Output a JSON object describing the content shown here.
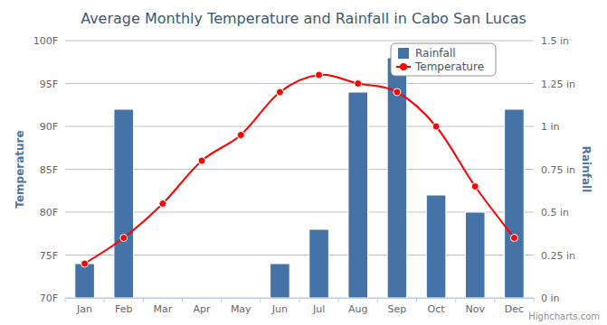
{
  "chart_data": {
    "type": "bar",
    "title": "Average Monthly Temperature and Rainfall in Cabo San Lucas",
    "categories": [
      "Jan",
      "Feb",
      "Mar",
      "Apr",
      "May",
      "Jun",
      "Jul",
      "Aug",
      "Sep",
      "Oct",
      "Nov",
      "Dec"
    ],
    "series": [
      {
        "name": "Rainfall",
        "type": "bar",
        "color": "#4572a7",
        "axis": "y2",
        "values": [
          0.2,
          1.1,
          0,
          0,
          0,
          0.2,
          0.4,
          1.2,
          1.4,
          0.6,
          0.5,
          1.1
        ]
      },
      {
        "name": "Temperature",
        "type": "spline",
        "color": "#ff0000",
        "marker": "circle",
        "values": [
          74,
          77,
          81,
          86,
          89,
          94,
          96,
          95,
          94,
          90,
          83,
          77
        ]
      }
    ],
    "y_label": "Temperature",
    "y2_label": "Rainfall",
    "ylim": [
      70,
      100
    ],
    "yticks": [
      {
        "value": 70,
        "label": "70F"
      },
      {
        "value": 75,
        "label": "75F"
      },
      {
        "value": 80,
        "label": "80F"
      },
      {
        "value": 85,
        "label": "85F"
      },
      {
        "value": 90,
        "label": "90F"
      },
      {
        "value": 95,
        "label": "95F"
      },
      {
        "value": 100,
        "label": "100F"
      }
    ],
    "y2lim": [
      0,
      1.5
    ],
    "y2ticks": [
      {
        "value": 0,
        "label": "0 in"
      },
      {
        "value": 0.25,
        "label": "0.25 in"
      },
      {
        "value": 0.5,
        "label": "0.5 in"
      },
      {
        "value": 0.75,
        "label": "0.75 in"
      },
      {
        "value": 1,
        "label": "1 in"
      },
      {
        "value": 1.25,
        "label": "1.25 in"
      },
      {
        "value": 1.5,
        "label": "1.5 in"
      }
    ],
    "grid": true,
    "legend": "upper right",
    "credits": "Highcharts.com"
  }
}
